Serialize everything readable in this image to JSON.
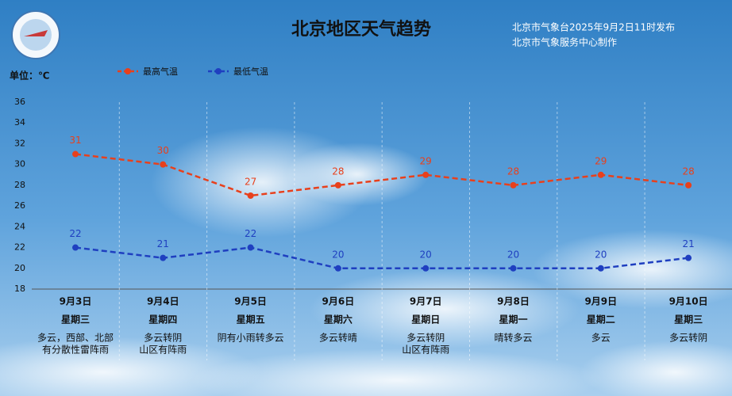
{
  "chart_data": {
    "type": "line",
    "title": "北京地区天气趋势",
    "source": [
      "北京市气象台2025年9月2日11时发布",
      "北京市气象服务中心制作"
    ],
    "unit_label": "单位：℃",
    "categories": [
      "9月3日",
      "9月4日",
      "9月5日",
      "9月6日",
      "9月7日",
      "9月8日",
      "9月9日",
      "9月10日"
    ],
    "weekdays": [
      "星期三",
      "星期四",
      "星期五",
      "星期六",
      "星期日",
      "星期一",
      "星期二",
      "星期三"
    ],
    "weather": [
      [
        "多云，西部、北部",
        "有分散性雷阵雨"
      ],
      [
        "多云转阴",
        "山区有阵雨"
      ],
      [
        "阴有小雨转多云"
      ],
      [
        "多云转晴"
      ],
      [
        "多云转阴",
        "山区有阵雨"
      ],
      [
        "晴转多云"
      ],
      [
        "多云"
      ],
      [
        "多云转阴"
      ]
    ],
    "series": [
      {
        "name": "最高气温",
        "color": "#e8401c",
        "values": [
          31,
          30,
          27,
          28,
          29,
          28,
          29,
          28
        ]
      },
      {
        "name": "最低气温",
        "color": "#1f3fc0",
        "values": [
          22,
          21,
          22,
          20,
          20,
          20,
          20,
          21
        ]
      }
    ],
    "ylim": [
      18,
      36
    ],
    "yticks": [
      18,
      20,
      22,
      24,
      26,
      28,
      30,
      32,
      34,
      36
    ],
    "grid": false
  }
}
